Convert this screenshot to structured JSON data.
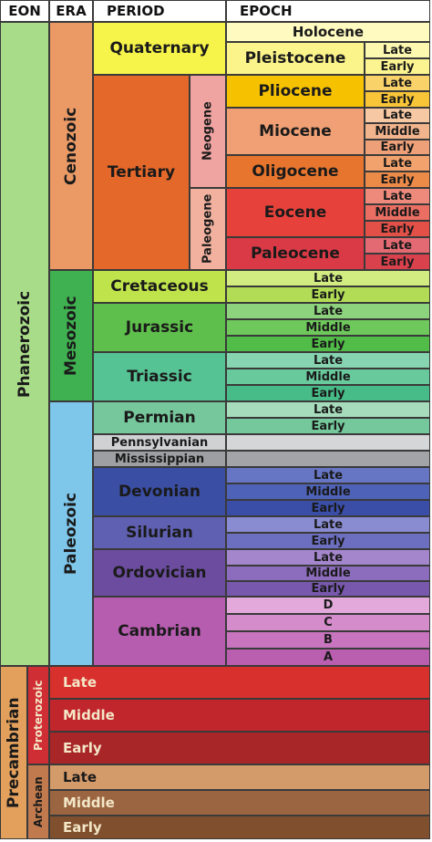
{
  "header": {
    "eon": "EON",
    "era": "ERA",
    "period": "PERIOD",
    "epoch": "EPOCH"
  },
  "eons": {
    "phanerozoic": "Phanerozoic",
    "precambrian": "Precambrian"
  },
  "eras": {
    "cenozoic": "Cenozoic",
    "mesozoic": "Mesozoic",
    "paleozoic": "Paleozoic",
    "proterozoic": "Proterozoic",
    "archean": "Archean"
  },
  "subperiods": {
    "neogene": "Neogene",
    "paleogene": "Paleogene"
  },
  "periods": {
    "quaternary": "Quaternary",
    "tertiary": "Tertiary",
    "cretaceous": "Cretaceous",
    "jurassic": "Jurassic",
    "triassic": "Triassic",
    "permian": "Permian",
    "pennsylvanian": "Pennsylvanian",
    "mississippian": "Mississippian",
    "devonian": "Devonian",
    "silurian": "Silurian",
    "ordovician": "Ordovician",
    "cambrian": "Cambrian"
  },
  "epochs": {
    "holocene": "Holocene",
    "pleistocene": "Pleistocene",
    "pliocene": "Pliocene",
    "miocene": "Miocene",
    "oligocene": "Oligocene",
    "eocene": "Eocene",
    "paleocene": "Paleocene"
  },
  "stages": {
    "late": "Late",
    "middle": "Middle",
    "early": "Early",
    "d": "D",
    "c": "C",
    "b": "B",
    "a": "A"
  },
  "colors": {
    "phanerozoic": "#a9dc89",
    "precambrian": "#e2a05c",
    "cenozoic": "#eb9a66",
    "mesozoic": "#3fb150",
    "paleozoic": "#7ec6ea",
    "proterozoic": "#cf2f34",
    "archean": "#c07a4e",
    "quaternary": "#f6f34a",
    "tertiary": "#e5682b",
    "neogene": "#f0a4a1",
    "paleogene": "#f2b19f",
    "holocene": "#fefac0",
    "pleistocene": "#fbf48b",
    "pliocene": "#f6c200",
    "miocene": "#f0a074",
    "oligocene": "#e7752e",
    "eocene": "#e6423b",
    "paleocene": "#d93a45",
    "cretaceous": "#bfe34b",
    "jurassic": "#5fbf4c",
    "triassic": "#56c394",
    "permian": "#76c79b",
    "pennsylvanian": "#cfd1d3",
    "mississippian": "#9d9fa2",
    "devonian": "#3a4ea3",
    "silurian": "#6060b3",
    "ordovician": "#6b4c9f",
    "cambrian": "#b75db0"
  }
}
